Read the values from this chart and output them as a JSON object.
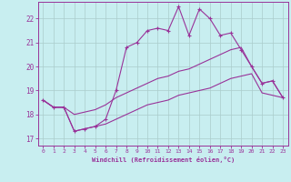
{
  "xlabel": "Windchill (Refroidissement éolien,°C)",
  "background_color": "#c8eef0",
  "line_color": "#993399",
  "grid_color": "#aacccc",
  "xlim": [
    -0.5,
    23.5
  ],
  "ylim": [
    16.7,
    22.7
  ],
  "yticks": [
    17,
    18,
    19,
    20,
    21,
    22
  ],
  "xticks": [
    0,
    1,
    2,
    3,
    4,
    5,
    6,
    7,
    8,
    9,
    10,
    11,
    12,
    13,
    14,
    15,
    16,
    17,
    18,
    19,
    20,
    21,
    22,
    23
  ],
  "line1_x": [
    0,
    1,
    2,
    3,
    4,
    5,
    6,
    7,
    8,
    9,
    10,
    11,
    12,
    13,
    14,
    15,
    16,
    17,
    18,
    19,
    20,
    21,
    22,
    23
  ],
  "line1_y": [
    18.6,
    18.3,
    18.3,
    17.3,
    17.4,
    17.5,
    17.8,
    19.0,
    20.8,
    21.0,
    21.5,
    21.6,
    21.5,
    22.5,
    21.3,
    22.4,
    22.0,
    21.3,
    21.4,
    20.7,
    20.0,
    19.3,
    19.4,
    18.7
  ],
  "line2_x": [
    0,
    1,
    2,
    3,
    4,
    5,
    6,
    7,
    8,
    9,
    10,
    11,
    12,
    13,
    14,
    15,
    16,
    17,
    18,
    19,
    20,
    21,
    22,
    23
  ],
  "line2_y": [
    18.6,
    18.3,
    18.3,
    18.0,
    18.1,
    18.2,
    18.4,
    18.7,
    18.9,
    19.1,
    19.3,
    19.5,
    19.6,
    19.8,
    19.9,
    20.1,
    20.3,
    20.5,
    20.7,
    20.8,
    20.0,
    19.3,
    19.4,
    18.7
  ],
  "line3_x": [
    0,
    1,
    2,
    3,
    4,
    5,
    6,
    7,
    8,
    9,
    10,
    11,
    12,
    13,
    14,
    15,
    16,
    17,
    18,
    19,
    20,
    21,
    22,
    23
  ],
  "line3_y": [
    18.6,
    18.3,
    18.3,
    17.3,
    17.4,
    17.5,
    17.6,
    17.8,
    18.0,
    18.2,
    18.4,
    18.5,
    18.6,
    18.8,
    18.9,
    19.0,
    19.1,
    19.3,
    19.5,
    19.6,
    19.7,
    18.9,
    18.8,
    18.7
  ]
}
